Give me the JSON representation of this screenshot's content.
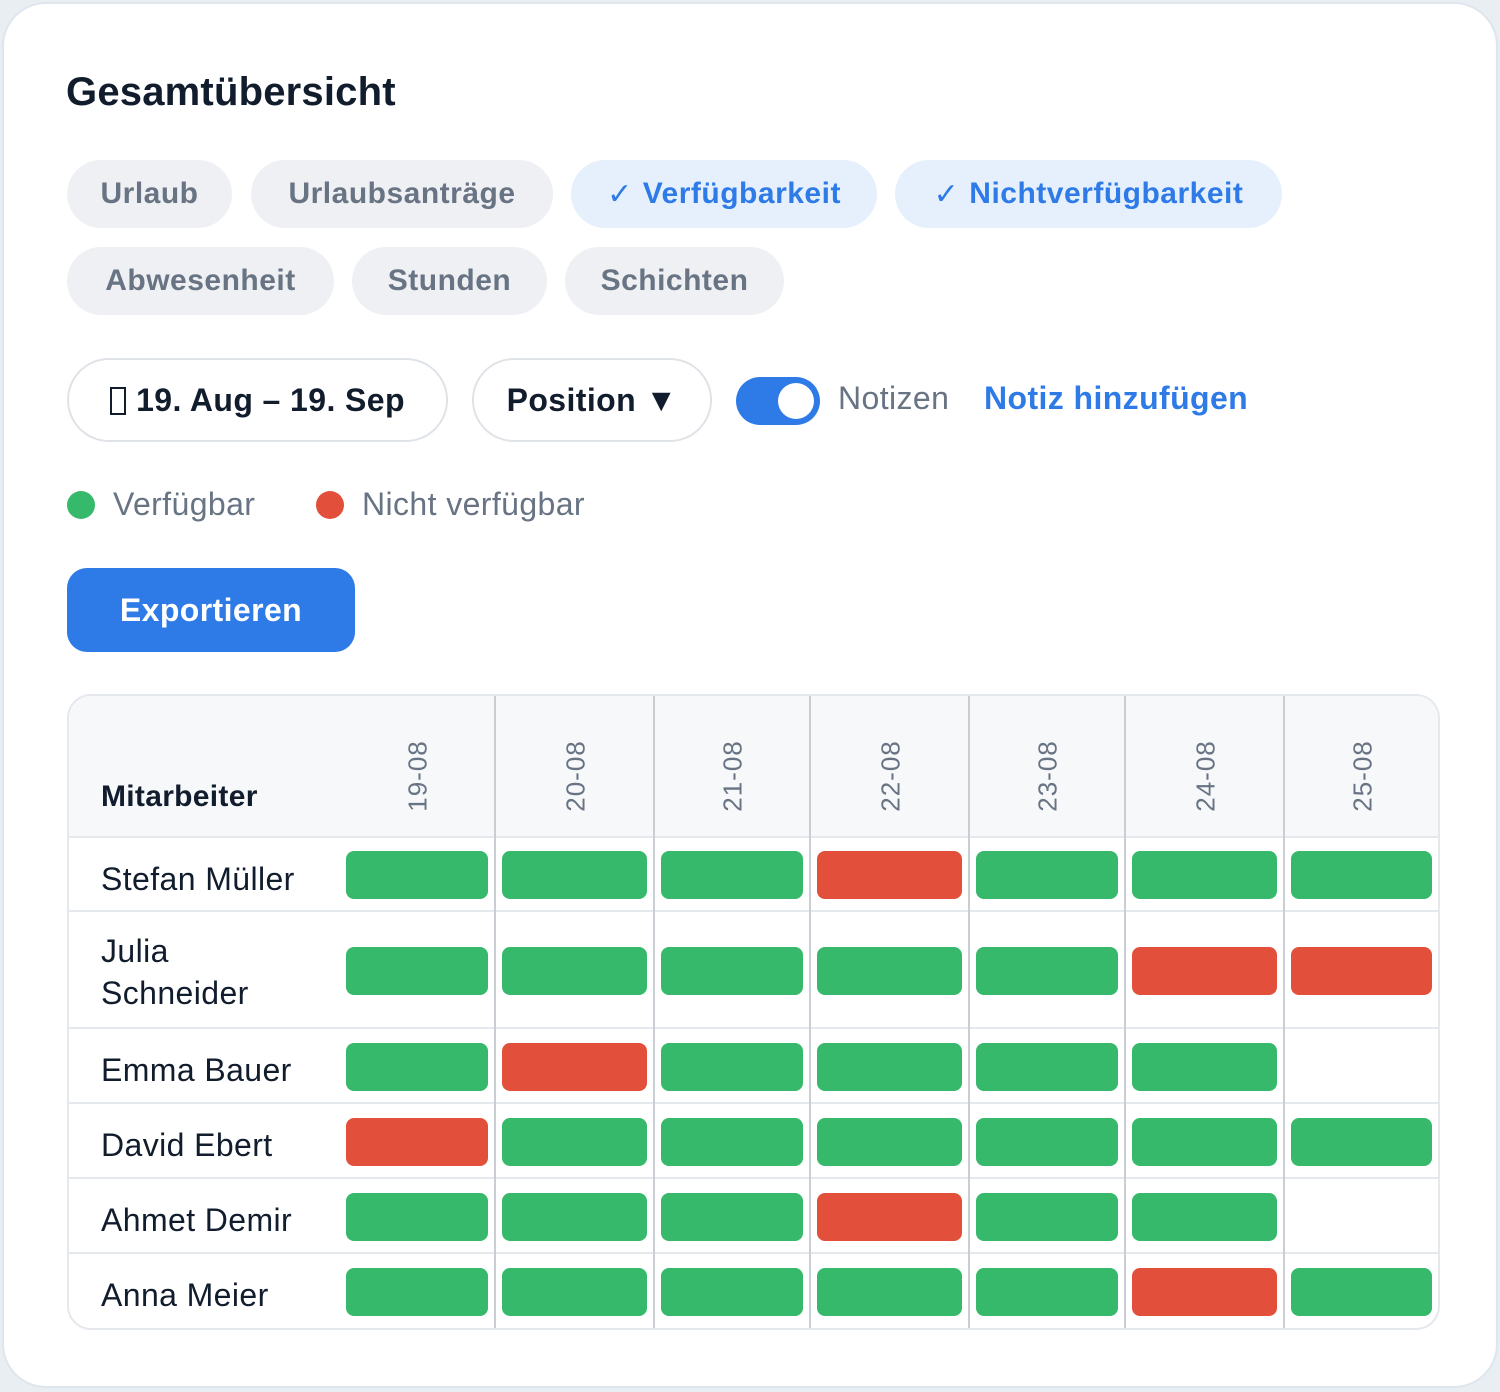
{
  "title": "Gesamtübersicht",
  "filters": [
    {
      "label": "Urlaub",
      "active": false
    },
    {
      "label": "Urlaubsanträge",
      "active": false
    },
    {
      "label": "Verfügbarkeit",
      "active": true
    },
    {
      "label": "Nichtverfügbarkeit",
      "active": true
    },
    {
      "label": "Abwesenheit",
      "active": false
    },
    {
      "label": "Stunden",
      "active": false
    },
    {
      "label": "Schichten",
      "active": false
    }
  ],
  "check_glyph": "✓",
  "date_range": "19. Aug – 19. Sep",
  "position_label": "Position ▼",
  "notes": {
    "toggle_on": true,
    "label": "Notizen",
    "add_label": "Notiz hinzufügen"
  },
  "legend": {
    "available": "Verfügbar",
    "unavailable": "Nicht verfügbar"
  },
  "colors": {
    "available": "#36b96b",
    "unavailable": "#e2503c",
    "accent": "#2e7be8"
  },
  "export_label": "Exportieren",
  "table": {
    "employee_header": "Mitarbeiter",
    "dates": [
      "19-08",
      "20-08",
      "21-08",
      "22-08",
      "23-08",
      "24-08",
      "25-08"
    ],
    "rows": [
      {
        "name": "Stefan Müller",
        "status": [
          "available",
          "available",
          "available",
          "unavailable",
          "available",
          "available",
          "available"
        ]
      },
      {
        "name": "Julia Schneider",
        "status": [
          "available",
          "available",
          "available",
          "available",
          "available",
          "unavailable",
          "unavailable"
        ]
      },
      {
        "name": "Emma Bauer",
        "status": [
          "available",
          "unavailable",
          "available",
          "available",
          "available",
          "available",
          ""
        ]
      },
      {
        "name": "David Ebert",
        "status": [
          "unavailable",
          "available",
          "available",
          "available",
          "available",
          "available",
          "available"
        ]
      },
      {
        "name": "Ahmet Demir",
        "status": [
          "available",
          "available",
          "available",
          "unavailable",
          "available",
          "available",
          ""
        ]
      },
      {
        "name": "Anna Meier",
        "status": [
          "available",
          "available",
          "available",
          "available",
          "available",
          "unavailable",
          "available"
        ]
      }
    ]
  }
}
